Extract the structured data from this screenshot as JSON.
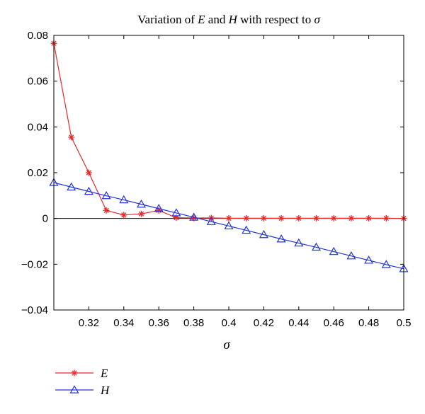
{
  "chart_data": {
    "type": "line",
    "title": {
      "prefix": "Variation of ",
      "e": "E",
      "mid": " and ",
      "h": "H",
      "suffix": " with respect to ",
      "sigma": "σ"
    },
    "xlabel": "σ",
    "ylabel": "",
    "xlim": [
      0.3,
      0.5
    ],
    "ylim": [
      -0.04,
      0.08
    ],
    "x_ticks": [
      0.32,
      0.34,
      0.36,
      0.38,
      0.4,
      0.42,
      0.44,
      0.46,
      0.48,
      0.5
    ],
    "x_tick_labels": [
      "0.32",
      "0.34",
      "0.36",
      "0.38",
      "0.4",
      "0.42",
      "0.44",
      "0.46",
      "0.48",
      "0.5"
    ],
    "y_ticks": [
      -0.04,
      -0.02,
      0,
      0.02,
      0.04,
      0.06,
      0.08
    ],
    "y_tick_labels": [
      "−0.04",
      "−0.02",
      "0",
      "0.02",
      "0.04",
      "0.06",
      "0.08"
    ],
    "zero_line": true,
    "grid": false,
    "legend_position": "below-left",
    "x": [
      0.3,
      0.31,
      0.32,
      0.33,
      0.34,
      0.35,
      0.36,
      0.37,
      0.38,
      0.39,
      0.4,
      0.41,
      0.42,
      0.43,
      0.44,
      0.45,
      0.46,
      0.47,
      0.48,
      0.49,
      0.5
    ],
    "series": [
      {
        "name": "E",
        "color": "#e8282c",
        "marker": "asterisk",
        "values": [
          0.0765,
          0.0355,
          0.02,
          0.0035,
          0.0015,
          0.002,
          0.0035,
          0.0003,
          0.0002,
          0.0002,
          0.0001,
          0.0001,
          0.0001,
          0.0001,
          0.0001,
          0.0001,
          0.0001,
          0.0001,
          0.0001,
          0.0001,
          0.0
        ]
      },
      {
        "name": "H",
        "color": "#2233dd",
        "marker": "triangle",
        "values": [
          0.0157,
          0.0137,
          0.0118,
          0.0099,
          0.0081,
          0.0062,
          0.0043,
          0.0024,
          0.0005,
          -0.0014,
          -0.0033,
          -0.0052,
          -0.0071,
          -0.009,
          -0.0108,
          -0.0126,
          -0.0145,
          -0.0164,
          -0.0183,
          -0.0202,
          -0.022
        ]
      }
    ]
  }
}
